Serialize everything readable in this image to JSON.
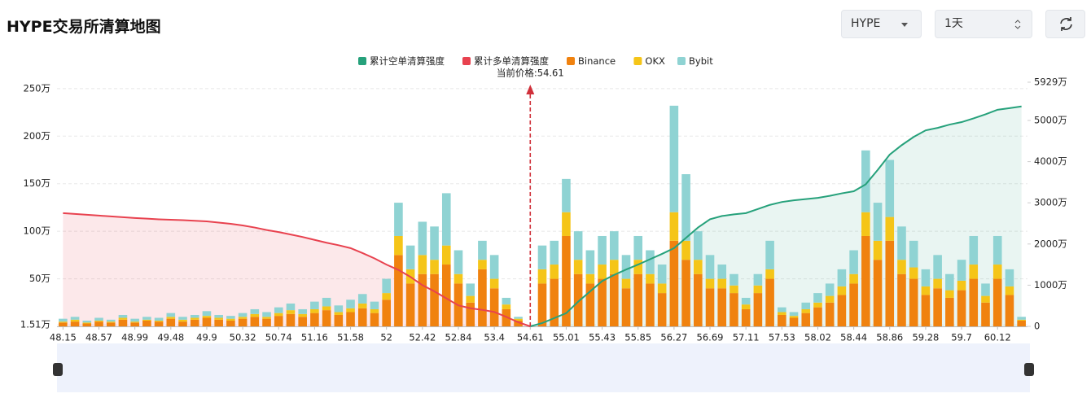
{
  "header": {
    "title": "HYPE交易所清算地图",
    "symbol": "HYPE",
    "period": "1天"
  },
  "chart_data": {
    "type": "bar",
    "annotation": "当前价格:54.61",
    "categories": [
      "48.15",
      null,
      null,
      "48.57",
      null,
      null,
      "48.99",
      null,
      null,
      "49.48",
      null,
      null,
      "49.9",
      null,
      null,
      "50.32",
      null,
      null,
      "50.74",
      null,
      null,
      "51.16",
      null,
      null,
      "51.58",
      null,
      null,
      "52",
      null,
      null,
      "52.42",
      null,
      null,
      "52.84",
      null,
      null,
      "53.4",
      null,
      null,
      "54.61",
      null,
      null,
      "55.01",
      null,
      null,
      "55.43",
      null,
      null,
      "55.85",
      null,
      null,
      "56.27",
      null,
      null,
      "56.69",
      null,
      null,
      "57.11",
      null,
      null,
      "57.53",
      null,
      null,
      "58.02",
      null,
      null,
      "58.44",
      null,
      null,
      "58.86",
      null,
      null,
      "59.28",
      null,
      null,
      "59.7",
      null,
      null,
      "60.12",
      null,
      null
    ],
    "series": [
      {
        "name": "累计空单清算强度",
        "type": "line",
        "axis": "y2",
        "color": "#26a17b",
        "area_color": "rgba(38,161,123,0.10)",
        "values": [
          null,
          null,
          null,
          null,
          null,
          null,
          null,
          null,
          null,
          null,
          null,
          null,
          null,
          null,
          null,
          null,
          null,
          null,
          null,
          null,
          null,
          null,
          null,
          null,
          null,
          null,
          null,
          null,
          null,
          null,
          null,
          null,
          null,
          null,
          null,
          null,
          null,
          null,
          null,
          0,
          80,
          200,
          320,
          600,
          850,
          1100,
          1250,
          1380,
          1500,
          1630,
          1760,
          1900,
          2150,
          2400,
          2600,
          2680,
          2720,
          2750,
          2850,
          2950,
          3020,
          3060,
          3090,
          3120,
          3170,
          3230,
          3280,
          3450,
          3800,
          4170,
          4400,
          4600,
          4760,
          4820,
          4900,
          4960,
          5050,
          5150,
          5260,
          5300,
          5340
        ]
      },
      {
        "name": "累计多单清算强度",
        "type": "line",
        "axis": "y2",
        "color": "#e8424f",
        "area_color": "rgba(232,66,79,0.12)",
        "values": [
          2750,
          2730,
          2710,
          2690,
          2670,
          2650,
          2630,
          2615,
          2600,
          2590,
          2580,
          2565,
          2550,
          2520,
          2490,
          2450,
          2400,
          2340,
          2290,
          2230,
          2170,
          2100,
          2030,
          1970,
          1900,
          1780,
          1650,
          1500,
          1370,
          1200,
          1000,
          850,
          680,
          510,
          440,
          400,
          350,
          230,
          100,
          0,
          null,
          null,
          null,
          null,
          null,
          null,
          null,
          null,
          null,
          null,
          null,
          null,
          null,
          null,
          null,
          null,
          null,
          null,
          null,
          null,
          null,
          null,
          null,
          null,
          null,
          null,
          null,
          null,
          null,
          null,
          null,
          null,
          null,
          null,
          null,
          null,
          null,
          null,
          null,
          null,
          null
        ]
      },
      {
        "name": "Binance",
        "color": "#f0820f",
        "values": [
          4,
          5,
          3,
          5,
          4,
          7,
          4,
          6,
          5,
          8,
          5,
          7,
          9,
          7,
          6,
          8,
          10,
          8,
          11,
          13,
          10,
          14,
          17,
          12,
          15,
          19,
          14,
          28,
          75,
          45,
          55,
          55,
          65,
          45,
          25,
          60,
          40,
          18,
          6,
          0,
          45,
          50,
          95,
          55,
          45,
          50,
          55,
          40,
          55,
          45,
          35,
          90,
          70,
          55,
          40,
          40,
          35,
          18,
          35,
          50,
          12,
          9,
          14,
          20,
          25,
          33,
          45,
          95,
          70,
          90,
          55,
          50,
          33,
          40,
          30,
          38,
          50,
          25,
          50,
          33,
          6
        ]
      },
      {
        "name": "OKX",
        "color": "#f5c518",
        "values": [
          1,
          2,
          1,
          1,
          1,
          2,
          1,
          1,
          1,
          2,
          2,
          2,
          2,
          2,
          2,
          2,
          3,
          2,
          3,
          4,
          3,
          4,
          4,
          3,
          4,
          5,
          4,
          7,
          20,
          15,
          20,
          15,
          20,
          10,
          7,
          10,
          10,
          5,
          2,
          0,
          15,
          15,
          25,
          15,
          10,
          15,
          15,
          10,
          15,
          10,
          10,
          30,
          20,
          15,
          10,
          10,
          8,
          5,
          8,
          10,
          3,
          2,
          4,
          5,
          7,
          9,
          10,
          25,
          20,
          25,
          15,
          12,
          9,
          10,
          8,
          10,
          15,
          7,
          15,
          9,
          1
        ]
      },
      {
        "name": "Bybit",
        "color": "#8fd3d3",
        "values": [
          3,
          3,
          2,
          3,
          2,
          3,
          3,
          3,
          3,
          4,
          3,
          3,
          5,
          3,
          3,
          4,
          5,
          5,
          6,
          7,
          5,
          8,
          9,
          7,
          9,
          10,
          8,
          15,
          35,
          25,
          35,
          35,
          55,
          25,
          13,
          20,
          25,
          7,
          2,
          0,
          25,
          25,
          35,
          30,
          25,
          30,
          30,
          25,
          25,
          25,
          20,
          112,
          70,
          30,
          25,
          15,
          12,
          7,
          12,
          30,
          5,
          4,
          7,
          10,
          13,
          18,
          25,
          65,
          40,
          60,
          35,
          28,
          18,
          25,
          17,
          22,
          30,
          13,
          30,
          18,
          3
        ]
      }
    ],
    "ylim": [
      0,
      255
    ],
    "yticks": [
      {
        "value": 1.51,
        "label": "1.51万"
      },
      {
        "value": 50,
        "label": "50万"
      },
      {
        "value": 100,
        "label": "100万"
      },
      {
        "value": 150,
        "label": "150万"
      },
      {
        "value": 200,
        "label": "200万"
      },
      {
        "value": 250,
        "label": "250万"
      }
    ],
    "y2lim": [
      0,
      5929
    ],
    "y2ticks": [
      0,
      {
        "value": 1000,
        "label": "1000万"
      },
      {
        "value": 2000,
        "label": "2000万"
      },
      {
        "value": 3000,
        "label": "3000万"
      },
      {
        "value": 4000,
        "label": "4000万"
      },
      {
        "value": 5000,
        "label": "5000万"
      },
      {
        "value": 5929,
        "label": "5929万"
      }
    ],
    "grid": true,
    "legend": "top"
  }
}
